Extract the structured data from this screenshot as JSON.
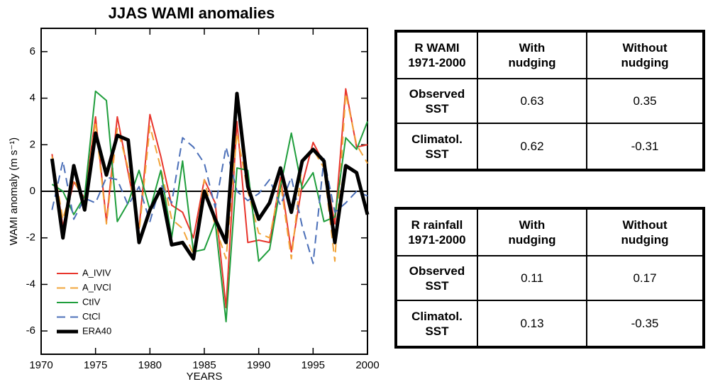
{
  "chart_data": {
    "type": "line",
    "title": "JJAS WAMI anomalies",
    "x_label": "YEARS",
    "y_label": "WAMI anomaly (m s⁻¹)",
    "x": [
      1971,
      1972,
      1973,
      1974,
      1975,
      1976,
      1977,
      1978,
      1979,
      1980,
      1981,
      1982,
      1983,
      1984,
      1985,
      1986,
      1987,
      1988,
      1989,
      1990,
      1991,
      1992,
      1993,
      1994,
      1995,
      1996,
      1997,
      1998,
      1999,
      2000
    ],
    "xlim": [
      1970,
      2000
    ],
    "xticks": [
      1970,
      1975,
      1980,
      1985,
      1990,
      1995,
      2000
    ],
    "ylim": [
      -7,
      7
    ],
    "yticks": [
      -6,
      -4,
      -2,
      0,
      2,
      4,
      6
    ],
    "legend": "lower left",
    "series": [
      {
        "name": "A_IVIV",
        "color": "#e8352c",
        "dash": false,
        "width": 2,
        "values": [
          1.6,
          -1.5,
          0.4,
          -0.3,
          3.2,
          -1.3,
          3.2,
          0.8,
          -1.6,
          3.3,
          1.5,
          -0.6,
          -0.9,
          -2.0,
          0.5,
          -0.5,
          -5.0,
          3.0,
          -2.2,
          -2.1,
          -2.2,
          0.6,
          -2.6,
          0.3,
          2.1,
          1.2,
          -1.4,
          4.4,
          1.9,
          2.0
        ]
      },
      {
        "name": "A_IVCl",
        "color": "#f2a43a",
        "dash": true,
        "width": 2,
        "values": [
          1.5,
          -1.2,
          0.5,
          -0.5,
          3.0,
          -1.4,
          2.7,
          1.0,
          -1.8,
          2.8,
          1.0,
          -1.2,
          -1.6,
          -2.7,
          0.5,
          -1.5,
          -2.9,
          2.5,
          0.0,
          -1.8,
          -2.0,
          0.4,
          -2.9,
          1.2,
          1.8,
          1.0,
          -3.0,
          4.2,
          2.0,
          1.2
        ]
      },
      {
        "name": "CtIV",
        "color": "#1f9e3c",
        "dash": false,
        "width": 2,
        "values": [
          0.3,
          0.0,
          -1.0,
          -0.2,
          4.3,
          3.9,
          -1.3,
          -0.5,
          0.9,
          -0.8,
          0.9,
          -2.0,
          1.3,
          -2.6,
          -2.5,
          -1.3,
          -5.6,
          1.0,
          0.9,
          -3.0,
          -2.5,
          0.2,
          2.5,
          0.1,
          0.8,
          -1.3,
          -1.1,
          2.3,
          1.8,
          3.0
        ]
      },
      {
        "name": "CtCl",
        "color": "#4b6fb8",
        "dash": true,
        "width": 2,
        "values": [
          -0.8,
          1.3,
          -1.2,
          -0.3,
          -0.5,
          0.6,
          0.5,
          -0.6,
          0.2,
          -1.3,
          0.3,
          -0.5,
          2.3,
          1.9,
          1.2,
          -0.7,
          1.9,
          0.0,
          -0.4,
          -0.1,
          0.5,
          -0.6,
          0.6,
          -1.5,
          -3.1,
          1.4,
          -0.9,
          -0.5,
          0.0,
          -0.2
        ]
      },
      {
        "name": "ERA40",
        "color": "#000000",
        "dash": false,
        "width": 5,
        "values": [
          1.4,
          -2.0,
          1.1,
          -0.8,
          2.5,
          0.7,
          2.4,
          2.2,
          -2.2,
          -0.8,
          0.1,
          -2.3,
          -2.2,
          -2.9,
          0.0,
          -1.2,
          -2.2,
          4.2,
          0.2,
          -1.2,
          -0.5,
          1.0,
          -0.9,
          1.3,
          1.8,
          1.3,
          -2.2,
          1.1,
          0.8,
          -1.0
        ]
      }
    ]
  },
  "tables": [
    {
      "header": [
        [
          "R WAMI",
          "1971-2000"
        ],
        [
          "With",
          "nudging"
        ],
        [
          "Without",
          "nudging"
        ]
      ],
      "rows": [
        [
          [
            "Observed",
            "SST"
          ],
          0.63,
          0.35
        ],
        [
          [
            "Climatol.",
            "SST"
          ],
          0.62,
          -0.31
        ]
      ]
    },
    {
      "header": [
        [
          "R rainfall",
          "1971-2000"
        ],
        [
          "With",
          "nudging"
        ],
        [
          "Without",
          "nudging"
        ]
      ],
      "rows": [
        [
          [
            "Observed",
            "SST"
          ],
          0.11,
          0.17
        ],
        [
          [
            "Climatol.",
            "SST"
          ],
          0.13,
          -0.35
        ]
      ]
    }
  ]
}
